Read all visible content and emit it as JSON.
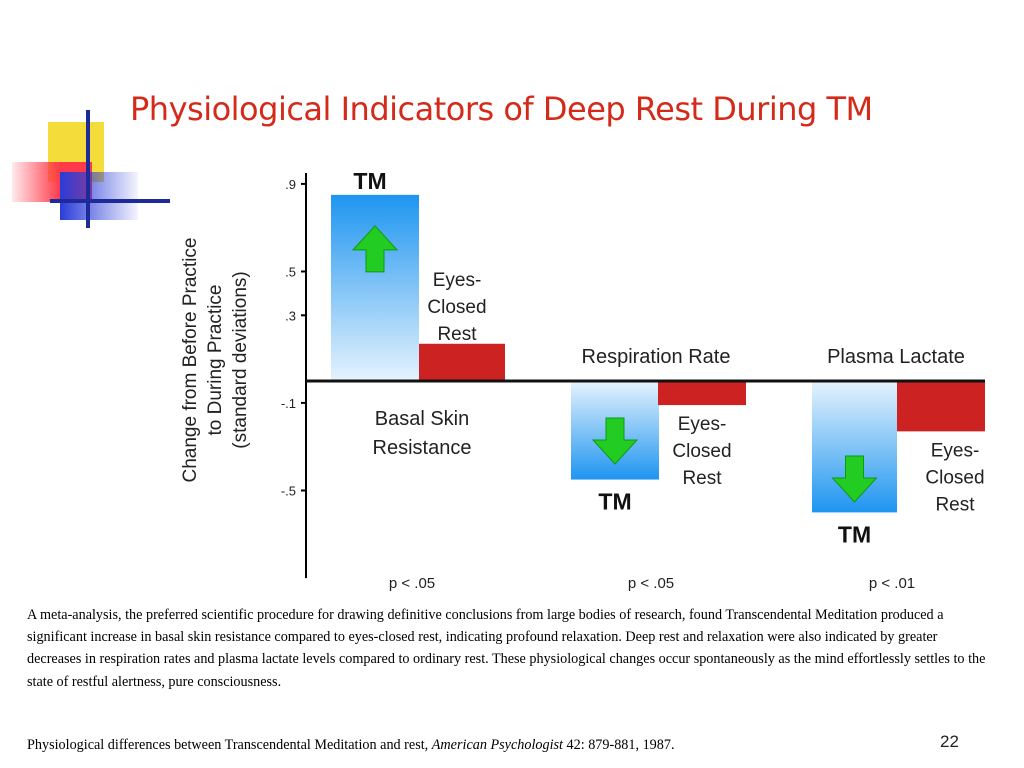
{
  "slide": {
    "title": "Physiological Indicators of Deep Rest During TM",
    "caption": "A meta-analysis, the preferred scientific procedure for drawing definitive conclusions from large bodies of research, found Transcendental Meditation produced a significant increase in basal skin resistance compared to eyes-closed rest, indicating profound relaxation. Deep rest and relaxation were also indicated by greater decreases in respiration rates and plasma lactate levels compared to ordinary rest. These physiological changes occur spontaneously as the mind effortlessly settles to the state of restful alertness, pure consciousness.",
    "citation_prefix": "Physiological differences between Transcendental Meditation and rest, ",
    "citation_journal": "American Psychologist",
    "citation_suffix": " 42: 879-881, 1987.",
    "slide_number": "22"
  },
  "chart_data": {
    "type": "bar",
    "title": "",
    "ylabel_lines": [
      "Change from Before Practice",
      "to During Practice",
      "(standard deviations)"
    ],
    "ylim": [
      -0.9,
      0.95
    ],
    "y_ticks": [
      {
        "value": 0.9,
        "label": ".9"
      },
      {
        "value": 0.5,
        "label": ".5"
      },
      {
        "value": 0.3,
        "label": ".3"
      },
      {
        "value": -0.1,
        "label": "-.1"
      },
      {
        "value": -0.5,
        "label": "-.5"
      }
    ],
    "groups": [
      {
        "category": "Basal Skin Resistance",
        "category_lines": [
          "Basal Skin",
          "Resistance"
        ],
        "p_value": "p < .05",
        "bars": [
          {
            "label": "TM",
            "value": 0.85,
            "arrow": "up"
          },
          {
            "label_lines": [
              "Eyes-",
              "Closed",
              "Rest"
            ],
            "value": 0.17
          }
        ]
      },
      {
        "category": "Respiration Rate",
        "category_lines": [
          "Respiration Rate"
        ],
        "p_value": "p < .05",
        "bars": [
          {
            "label": "TM",
            "value": -0.45,
            "arrow": "down"
          },
          {
            "label_lines": [
              "Eyes-",
              "Closed",
              "Rest"
            ],
            "value": -0.11
          }
        ]
      },
      {
        "category": "Plasma Lactate",
        "category_lines": [
          "Plasma Lactate"
        ],
        "p_value": "p < .01",
        "bars": [
          {
            "label": "TM",
            "value": -0.6,
            "arrow": "down"
          },
          {
            "label_lines": [
              "Eyes-",
              "Closed",
              "Rest"
            ],
            "value": -0.23
          }
        ]
      }
    ],
    "colors": {
      "tm_top": "#1e95f0",
      "tm_bottom": "#e6f3fd",
      "rest": "#cc2222",
      "arrow": "#22cc22"
    }
  }
}
